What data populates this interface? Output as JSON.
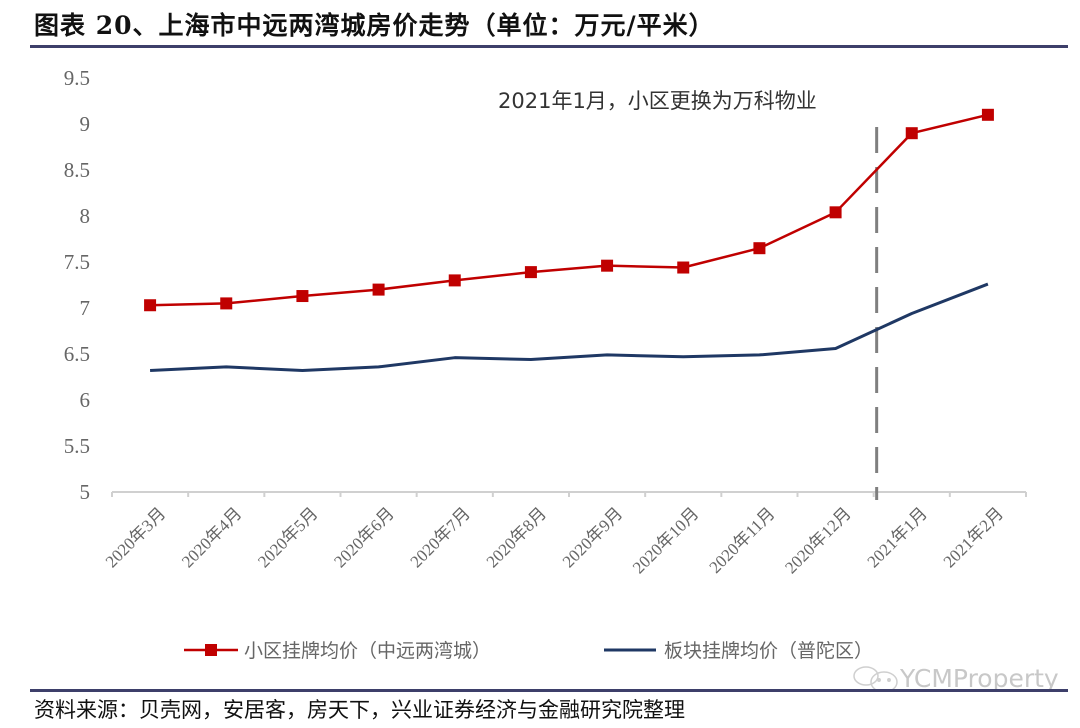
{
  "header": {
    "title": "图表 20、上海市中远两湾城房价走势（单位：万元/平米）"
  },
  "footer": {
    "source": "资料来源：贝壳网，安居客，房天下，兴业证券经济与金融研究院整理"
  },
  "watermark": {
    "text": "YCMProperty",
    "icon": "wechat-icon"
  },
  "colors": {
    "series_red": "#c00000",
    "series_blue": "#1f3864",
    "axis": "#d0d0d0",
    "tick_text": "#666666",
    "rule": "#3d3f6a",
    "dashed_line": "#7f7f7f"
  },
  "chart_data": {
    "type": "line",
    "title": "上海市中远两湾城房价走势（单位：万元/平米）",
    "xlabel": "",
    "ylabel": "万元/平米",
    "ylim": [
      5,
      9.5
    ],
    "yticks": [
      5,
      5.5,
      6,
      6.5,
      7,
      7.5,
      8,
      8.5,
      9,
      9.5
    ],
    "ytick_labels": [
      "5",
      "5.5",
      "6",
      "6.5",
      "7",
      "7.5",
      "8",
      "8.5",
      "9",
      "9.5"
    ],
    "grid": false,
    "legend_position": "bottom",
    "categories": [
      "2020年3月",
      "2020年4月",
      "2020年5月",
      "2020年6月",
      "2020年7月",
      "2020年8月",
      "2020年9月",
      "2020年10月",
      "2020年11月",
      "2020年12月",
      "2021年1月",
      "2021年2月"
    ],
    "series": [
      {
        "name": "小区挂牌均价（中远两湾城）",
        "color": "#c00000",
        "marker": "square",
        "values": [
          7.03,
          7.05,
          7.13,
          7.2,
          7.3,
          7.39,
          7.46,
          7.44,
          7.65,
          8.04,
          8.9,
          9.1
        ]
      },
      {
        "name": "板块挂牌均价（普陀区）",
        "color": "#1f3864",
        "marker": "none",
        "values": [
          6.32,
          6.36,
          6.32,
          6.36,
          6.46,
          6.44,
          6.49,
          6.47,
          6.49,
          6.56,
          6.94,
          7.26
        ]
      }
    ],
    "annotations": [
      {
        "text": "2021年1月，小区更换为万科物业",
        "type": "vertical-dashed-line",
        "position": "between 2020年12月 and 2021年1月"
      }
    ]
  }
}
